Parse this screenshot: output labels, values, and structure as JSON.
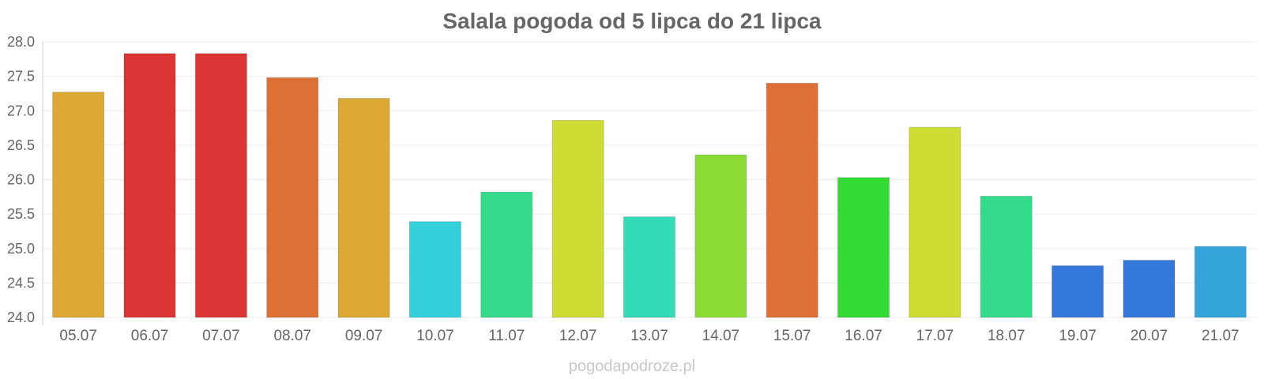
{
  "chart_data": {
    "type": "bar",
    "title": "Salala pogoda od 5 lipca do 21 lipca",
    "xlabel": "",
    "ylabel": "",
    "ylim": [
      24.0,
      28.0
    ],
    "yticks": [
      "24.0",
      "24.5",
      "25.0",
      "25.5",
      "26.0",
      "26.5",
      "27.0",
      "27.5",
      "28.0"
    ],
    "grid": true,
    "categories": [
      "05.07",
      "06.07",
      "07.07",
      "08.07",
      "09.07",
      "10.07",
      "11.07",
      "12.07",
      "13.07",
      "14.07",
      "15.07",
      "16.07",
      "17.07",
      "18.07",
      "19.07",
      "20.07",
      "21.07"
    ],
    "values": [
      27.27,
      27.83,
      27.83,
      27.48,
      27.18,
      25.39,
      25.82,
      26.86,
      25.46,
      26.36,
      27.4,
      26.03,
      26.76,
      25.76,
      24.75,
      24.83,
      25.03
    ],
    "colors": [
      "#dcaa34",
      "#db3535",
      "#db3535",
      "#dd7034",
      "#dcaa34",
      "#34d0db",
      "#34db8a",
      "#cedd34",
      "#34dbb8",
      "#8cdb34",
      "#dd7034",
      "#34db34",
      "#cedd34",
      "#34db8a",
      "#3578db",
      "#3578db",
      "#34a4db"
    ]
  },
  "watermark": "pogodapodroze.pl"
}
